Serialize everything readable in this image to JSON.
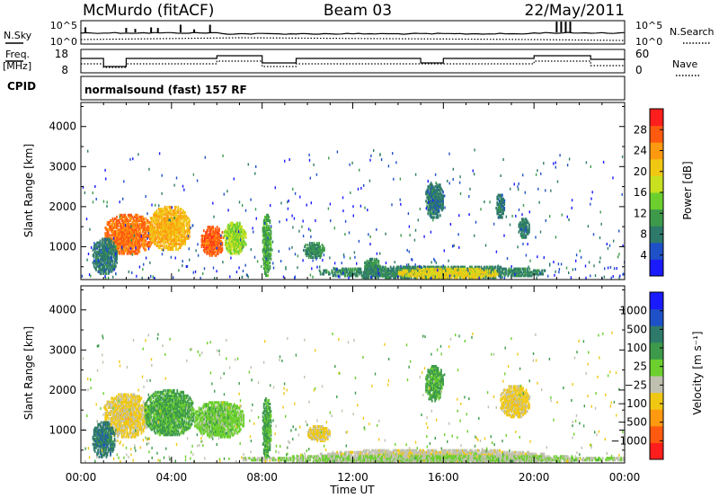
{
  "header": {
    "station": "McMurdo (fitACF)",
    "beam": "Beam 03",
    "date": "22/May/2011"
  },
  "strip1": {
    "left_label": "N.Sky",
    "right_label": "N.Search",
    "left_ticks": [
      "10^5",
      "10^0"
    ],
    "right_ticks": [
      "10^5",
      "10^0"
    ]
  },
  "strip2": {
    "left_label_1": "Freq.",
    "left_label_2": "[MHz]",
    "right_label": "Nave",
    "left_ticks": [
      "18",
      "8"
    ],
    "right_ticks": [
      "60",
      "0"
    ]
  },
  "cpid": {
    "label": "CPID",
    "program": "normalsound (fast) 157 RF"
  },
  "chart_data": [
    {
      "type": "heatmap",
      "title": "",
      "xlabel": "Time UT",
      "ylabel": "Slant Range [km]",
      "x_ticks": [
        "00:00",
        "04:00",
        "08:00",
        "12:00",
        "16:00",
        "20:00",
        "00:00"
      ],
      "y_ticks": [
        "1000",
        "2000",
        "3000",
        "4000"
      ],
      "xlim_hours": [
        0,
        24
      ],
      "ylim_km": [
        180,
        4600
      ],
      "colorbar": {
        "label": "Power [dB]",
        "ticks": [
          "28",
          "24",
          "20",
          "16",
          "12",
          "8",
          "4"
        ],
        "range": [
          0,
          32
        ],
        "colors": [
          "#1a1aff",
          "#1e50c8",
          "#2e7a6a",
          "#3d9a4a",
          "#6ccf2e",
          "#c8e020",
          "#f0c814",
          "#ff9a10",
          "#ff5a10",
          "#ff1e1e"
        ]
      },
      "blobs": [
        {
          "t0": 1.0,
          "t1": 3.2,
          "r0": 800,
          "r1": 1800,
          "val": 26
        },
        {
          "t0": 3.0,
          "t1": 4.8,
          "r0": 900,
          "r1": 2000,
          "val": 22
        },
        {
          "t0": 5.3,
          "t1": 6.3,
          "r0": 750,
          "r1": 1500,
          "val": 27
        },
        {
          "t0": 6.3,
          "t1": 7.3,
          "r0": 800,
          "r1": 1600,
          "val": 16
        },
        {
          "t0": 0.5,
          "t1": 1.6,
          "r0": 300,
          "r1": 1200,
          "val": 8
        },
        {
          "t0": 8.0,
          "t1": 8.4,
          "r0": 250,
          "r1": 1800,
          "val": 12
        },
        {
          "t0": 9.8,
          "t1": 10.8,
          "r0": 700,
          "r1": 1100,
          "val": 10
        },
        {
          "t0": 12.5,
          "t1": 13.2,
          "r0": 300,
          "r1": 700,
          "val": 10
        },
        {
          "t0": 15.2,
          "t1": 16.0,
          "r0": 1700,
          "r1": 2600,
          "val": 8
        },
        {
          "t0": 19.3,
          "t1": 19.8,
          "r0": 1200,
          "r1": 1700,
          "val": 8
        },
        {
          "t0": 18.3,
          "t1": 18.7,
          "r0": 1700,
          "r1": 2300,
          "val": 8
        },
        {
          "t0": 10.5,
          "t1": 20.5,
          "r0": 200,
          "r1": 500,
          "val": 9
        },
        {
          "t0": 14.0,
          "t1": 18.5,
          "r0": 200,
          "r1": 450,
          "val": 20
        }
      ]
    },
    {
      "type": "heatmap",
      "title": "",
      "xlabel": "Time UT",
      "ylabel": "Slant Range [km]",
      "x_ticks": [
        "00:00",
        "04:00",
        "08:00",
        "12:00",
        "16:00",
        "20:00",
        "00:00"
      ],
      "y_ticks": [
        "1000",
        "2000",
        "3000",
        "4000"
      ],
      "xlim_hours": [
        0,
        24
      ],
      "ylim_km": [
        180,
        4600
      ],
      "colorbar": {
        "label": "Velocity [m s⁻¹]",
        "ticks": [
          "1000",
          "500",
          "100",
          "25",
          "−25",
          "−100",
          "−500",
          "−1000"
        ],
        "range": [
          -1200,
          1200
        ],
        "colors": [
          "#ff1e1e",
          "#ff5a10",
          "#ff9a10",
          "#f0c814",
          "#c0c0b0",
          "#6ccf2e",
          "#3d9a4a",
          "#2e7a6a",
          "#1e50c8",
          "#1a1aff"
        ]
      },
      "blobs": [
        {
          "t0": 1.0,
          "t1": 3.0,
          "r0": 800,
          "r1": 1900,
          "val": -300
        },
        {
          "t0": 2.8,
          "t1": 5.0,
          "r0": 850,
          "r1": 2000,
          "val": 300
        },
        {
          "t0": 5.0,
          "t1": 7.2,
          "r0": 800,
          "r1": 1700,
          "val": 120
        },
        {
          "t0": 0.5,
          "t1": 1.5,
          "r0": 300,
          "r1": 1200,
          "val": 600
        },
        {
          "t0": 8.0,
          "t1": 8.4,
          "r0": 250,
          "r1": 1800,
          "val": 300
        },
        {
          "t0": 10.0,
          "t1": 11.0,
          "r0": 700,
          "r1": 1100,
          "val": -300
        },
        {
          "t0": 15.2,
          "t1": 16.0,
          "r0": 1700,
          "r1": 2600,
          "val": 300
        },
        {
          "t0": 18.5,
          "t1": 19.8,
          "r0": 1300,
          "r1": 2100,
          "val": -300
        },
        {
          "t0": 10.5,
          "t1": 20.5,
          "r0": 200,
          "r1": 500,
          "val": -150
        },
        {
          "t0": 7.0,
          "t1": 24.0,
          "r0": 180,
          "r1": 350,
          "val": 0
        }
      ]
    }
  ]
}
